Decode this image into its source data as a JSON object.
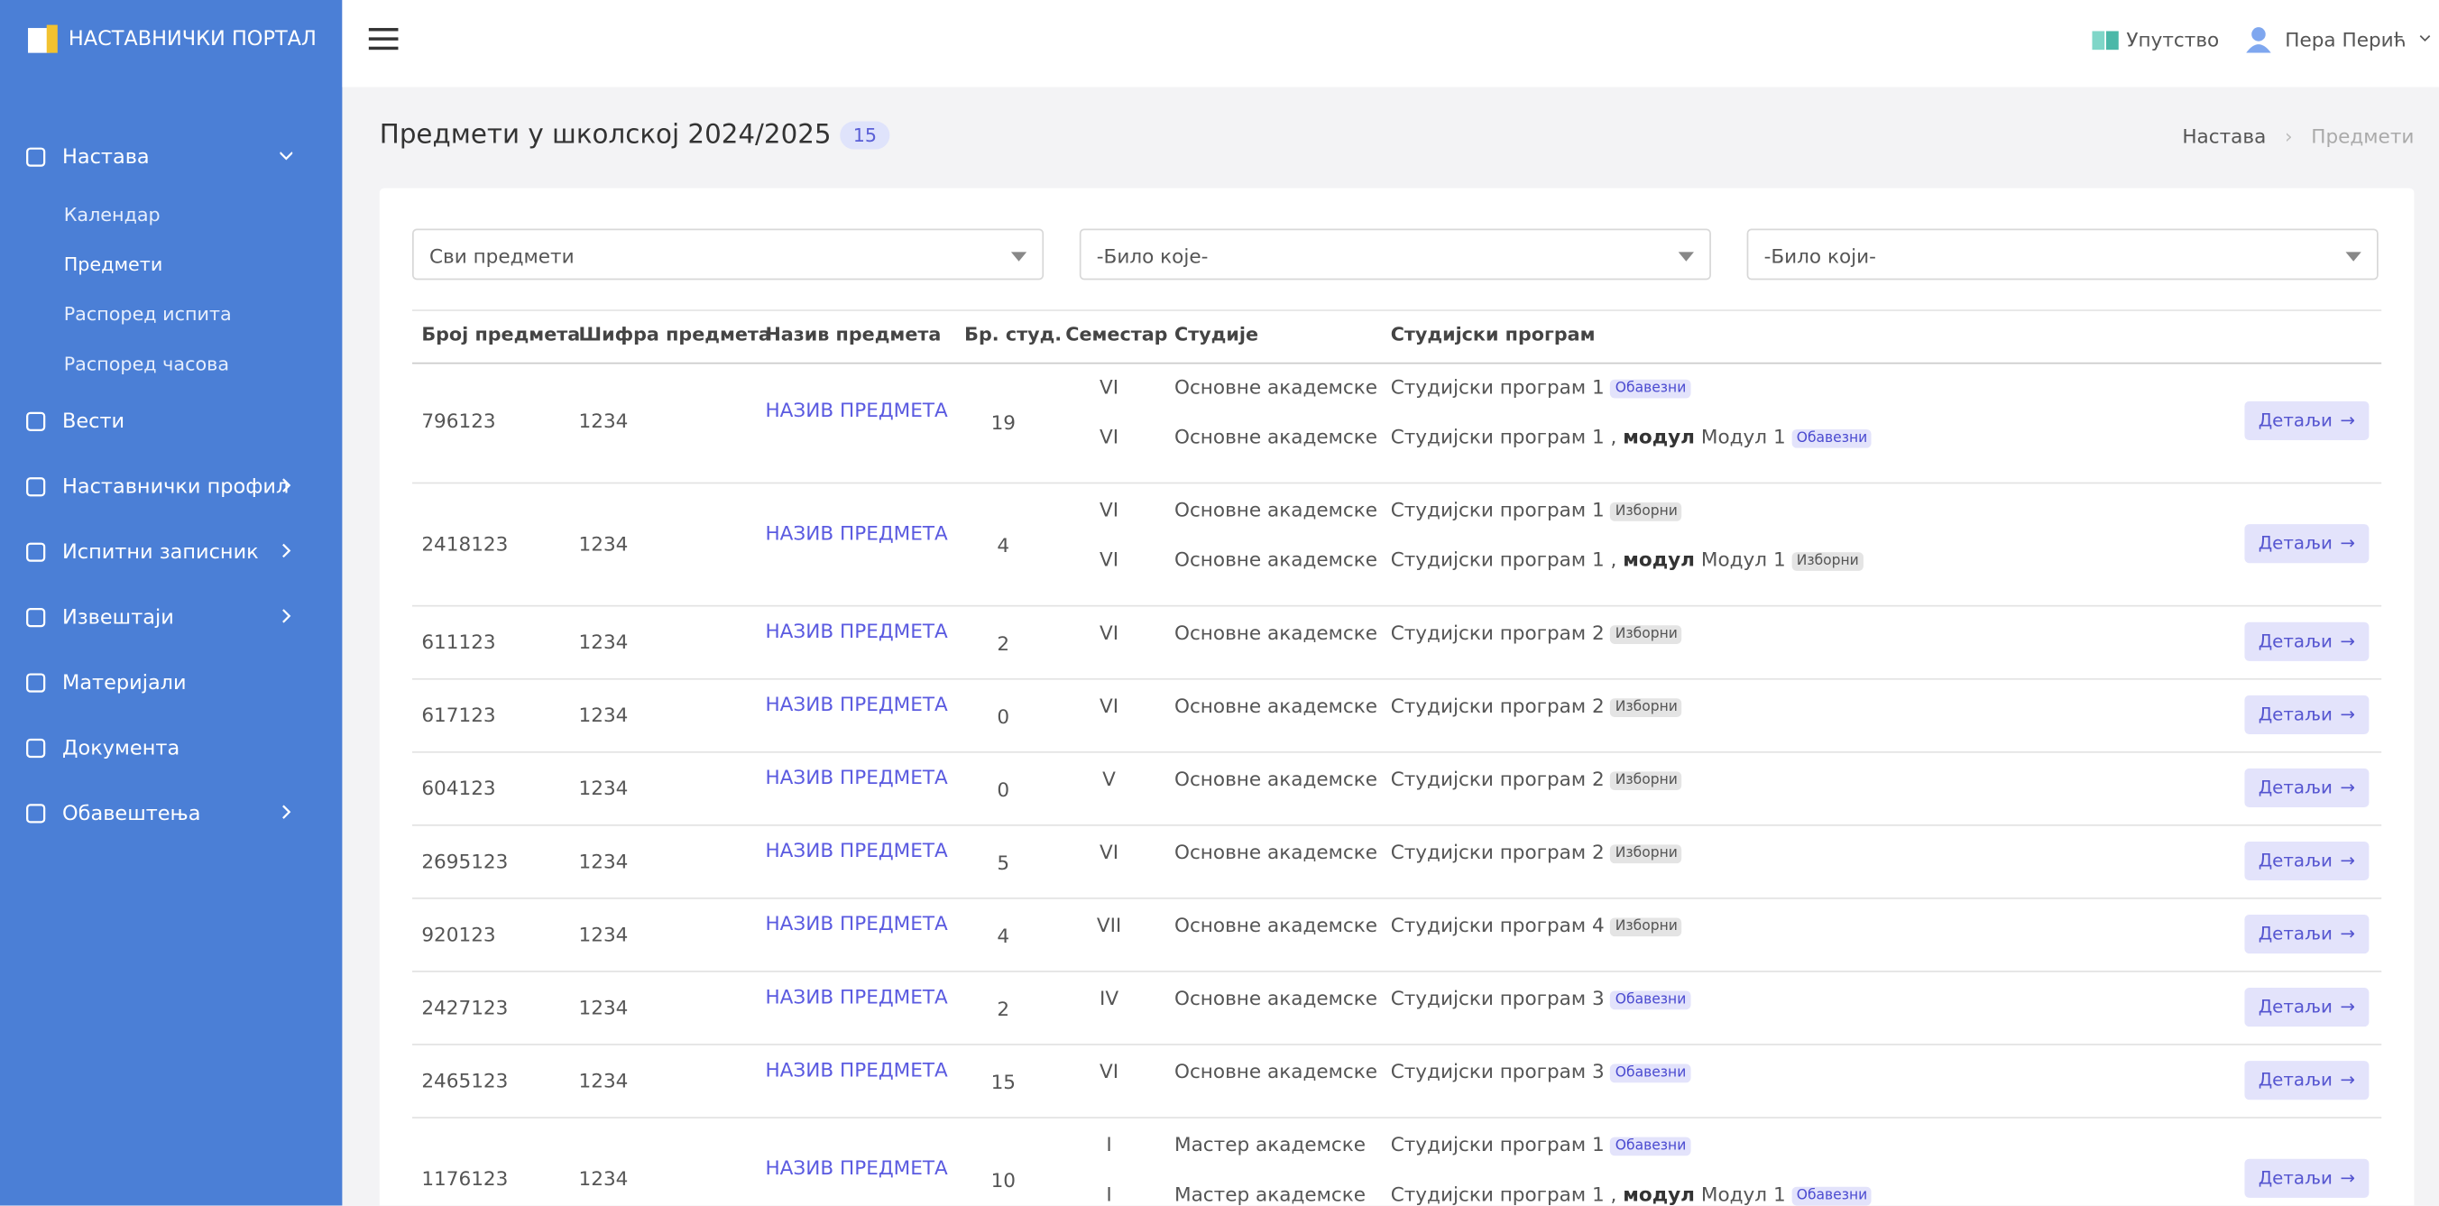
{
  "sidebar": {
    "brand": "НАСТАВНИЧКИ ПОРТАЛ",
    "nav": [
      {
        "label": "Настава",
        "children": [
          "Календар",
          "Предмети",
          "Распоред испита",
          "Распоред часова"
        ]
      },
      {
        "label": "Вести"
      },
      {
        "label": "Наставнички профил"
      },
      {
        "label": "Испитни записник"
      },
      {
        "label": "Извештаји"
      },
      {
        "label": "Материјали"
      },
      {
        "label": "Документа"
      },
      {
        "label": "Обавештења"
      }
    ]
  },
  "header": {
    "help": "Упутство",
    "user": "Пера Перић"
  },
  "page": {
    "title": "Предмети у школској 2024/2025",
    "count": "15",
    "breadcrumb": [
      "Настава",
      "Предмети"
    ]
  },
  "filters": [
    "Сви предмети",
    "-Било које-",
    "-Било који-"
  ],
  "table": {
    "headers": [
      "Број предмета",
      "Шифра предмета",
      "Назив предмета",
      "Бр. студ.",
      "Семестар",
      "Студије",
      "Студијски програм"
    ],
    "rows": [
      {
        "number": "796123",
        "code": "1234",
        "name": "НАЗИВ ПРЕДМЕТА",
        "students": "19",
        "action": "Детаљи",
        "entries": [
          {
            "semester": "VI",
            "studies": "Основне академске",
            "program": "Студијски програм 1",
            "badge": "Обавезни"
          },
          {
            "semester": "VI",
            "studies": "Основне академске",
            "program": "Студијски програм 1 ,",
            "module_label": "модул",
            "module": "Модул 1",
            "badge": "Обавезни"
          }
        ]
      },
      {
        "number": "2418123",
        "code": "1234",
        "name": "НАЗИВ ПРЕДМЕТА",
        "students": "4",
        "action": "Детаљи",
        "entries": [
          {
            "semester": "VI",
            "studies": "Основне академске",
            "program": "Студијски програм 1",
            "badge": "Изборни"
          },
          {
            "semester": "VI",
            "studies": "Основне академске",
            "program": "Студијски програм 1 ,",
            "module_label": "модул",
            "module": "Модул 1",
            "badge": "Изборни"
          }
        ]
      },
      {
        "number": "611123",
        "code": "1234",
        "name": "НАЗИВ ПРЕДМЕТА",
        "students": "2",
        "action": "Детаљи",
        "entries": [
          {
            "semester": "VI",
            "studies": "Основне академске",
            "program": "Студијски програм 2",
            "badge": "Изборни"
          }
        ]
      },
      {
        "number": "617123",
        "code": "1234",
        "name": "НАЗИВ ПРЕДМЕТА",
        "students": "0",
        "action": "Детаљи",
        "entries": [
          {
            "semester": "VI",
            "studies": "Основне академске",
            "program": "Студијски програм 2",
            "badge": "Изборни"
          }
        ]
      },
      {
        "number": "604123",
        "code": "1234",
        "name": "НАЗИВ ПРЕДМЕТА",
        "students": "0",
        "action": "Детаљи",
        "entries": [
          {
            "semester": "V",
            "studies": "Основне академске",
            "program": "Студијски програм 2",
            "badge": "Изборни"
          }
        ]
      },
      {
        "number": "2695123",
        "code": "1234",
        "name": "НАЗИВ ПРЕДМЕТА",
        "students": "5",
        "action": "Детаљи",
        "entries": [
          {
            "semester": "VI",
            "studies": "Основне академске",
            "program": "Студијски програм 2",
            "badge": "Изборни"
          }
        ]
      },
      {
        "number": "920123",
        "code": "1234",
        "name": "НАЗИВ ПРЕДМЕТА",
        "students": "4",
        "action": "Детаљи",
        "entries": [
          {
            "semester": "VII",
            "studies": "Основне академске",
            "program": "Студијски програм 4",
            "badge": "Изборни"
          }
        ]
      },
      {
        "number": "2427123",
        "code": "1234",
        "name": "НАЗИВ ПРЕДМЕТА",
        "students": "2",
        "action": "Детаљи",
        "entries": [
          {
            "semester": "IV",
            "studies": "Основне академске",
            "program": "Студијски програм 3",
            "badge": "Обавезни"
          }
        ]
      },
      {
        "number": "2465123",
        "code": "1234",
        "name": "НАЗИВ ПРЕДМЕТА",
        "students": "15",
        "action": "Детаљи",
        "entries": [
          {
            "semester": "VI",
            "studies": "Основне академске",
            "program": "Студијски програм 3",
            "badge": "Обавезни"
          }
        ]
      },
      {
        "number": "1176123",
        "code": "1234",
        "name": "НАЗИВ ПРЕДМЕТА",
        "students": "10",
        "action": "Детаљи",
        "entries": [
          {
            "semester": "I",
            "studies": "Мастер академске",
            "program": "Студијски програм 1",
            "badge": "Обавезни"
          },
          {
            "semester": "I",
            "studies": "Мастер академске",
            "program": "Студијски програм 1 ,",
            "module_label": "модул",
            "module": "Модул 1",
            "badge": "Обавезни"
          }
        ]
      }
    ]
  }
}
